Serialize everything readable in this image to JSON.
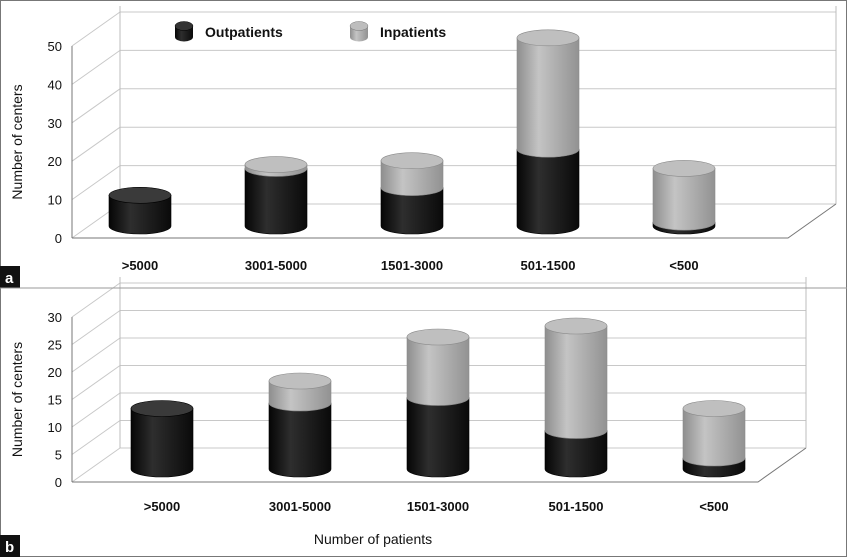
{
  "legend": {
    "outpatients": "Outpatients",
    "inpatients": "Inpatients"
  },
  "shared_xlabel": "Number of patients",
  "chart_data": [
    {
      "panel_tag": "a",
      "type": "bar",
      "stacked": true,
      "style": "3d-cylinder",
      "xlabel": "",
      "ylabel": "Number of centers",
      "ylim": [
        0,
        50
      ],
      "yticks": [
        0,
        10,
        20,
        30,
        40,
        50
      ],
      "categories": [
        ">5000",
        "3001-5000",
        "1501-3000",
        "501-1500",
        "<500"
      ],
      "series": [
        {
          "name": "Outpatients",
          "color": "#1a1a1a",
          "values": [
            8,
            15,
            10,
            20,
            1
          ]
        },
        {
          "name": "Inpatients",
          "color": "#a8a8a8",
          "values": [
            0,
            1,
            7,
            29,
            14
          ]
        }
      ],
      "grid": true,
      "legend_position": "top"
    },
    {
      "panel_tag": "b",
      "type": "bar",
      "stacked": true,
      "style": "3d-cylinder",
      "xlabel": "Number of patients",
      "ylabel": "Number of centers",
      "ylim": [
        0,
        30
      ],
      "yticks": [
        0,
        5,
        10,
        15,
        20,
        25,
        30
      ],
      "categories": [
        ">5000",
        "3001-5000",
        "1501-3000",
        "501-1500",
        "<500"
      ],
      "series": [
        {
          "name": "Outpatients",
          "color": "#1a1a1a",
          "values": [
            11,
            12,
            13,
            7,
            2
          ]
        },
        {
          "name": "Inpatients",
          "color": "#a8a8a8",
          "values": [
            0,
            4,
            11,
            19,
            9
          ]
        }
      ],
      "grid": true,
      "legend_position": "none"
    }
  ]
}
